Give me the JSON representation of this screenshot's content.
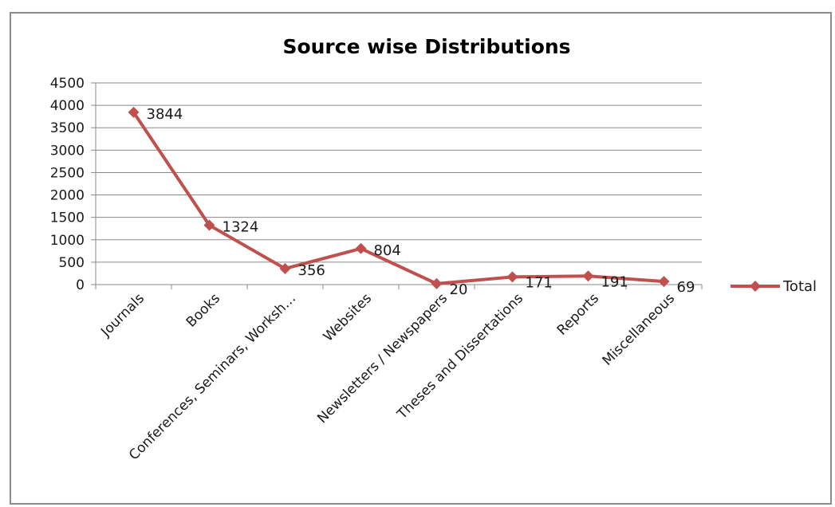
{
  "chart_data": {
    "type": "line",
    "title": "Source wise Distributions",
    "xlabel": "",
    "ylabel": "",
    "categories": [
      "Journals",
      "Books",
      "Conferences, Seminars, Worksh…",
      "Websites",
      "Newsletters / Newspapers",
      "Theses and Dissertations",
      "Reports",
      "Miscellaneous"
    ],
    "series": [
      {
        "name": "Total",
        "values": [
          3844,
          1324,
          356,
          804,
          20,
          171,
          191,
          69
        ]
      }
    ],
    "ylim": [
      0,
      4500
    ],
    "yticks": [
      0,
      500,
      1000,
      1500,
      2000,
      2500,
      3000,
      3500,
      4000,
      4500
    ],
    "grid": true,
    "legend": "right",
    "data_labels": true,
    "series_color": "#c0504d",
    "marker": "diamond"
  }
}
